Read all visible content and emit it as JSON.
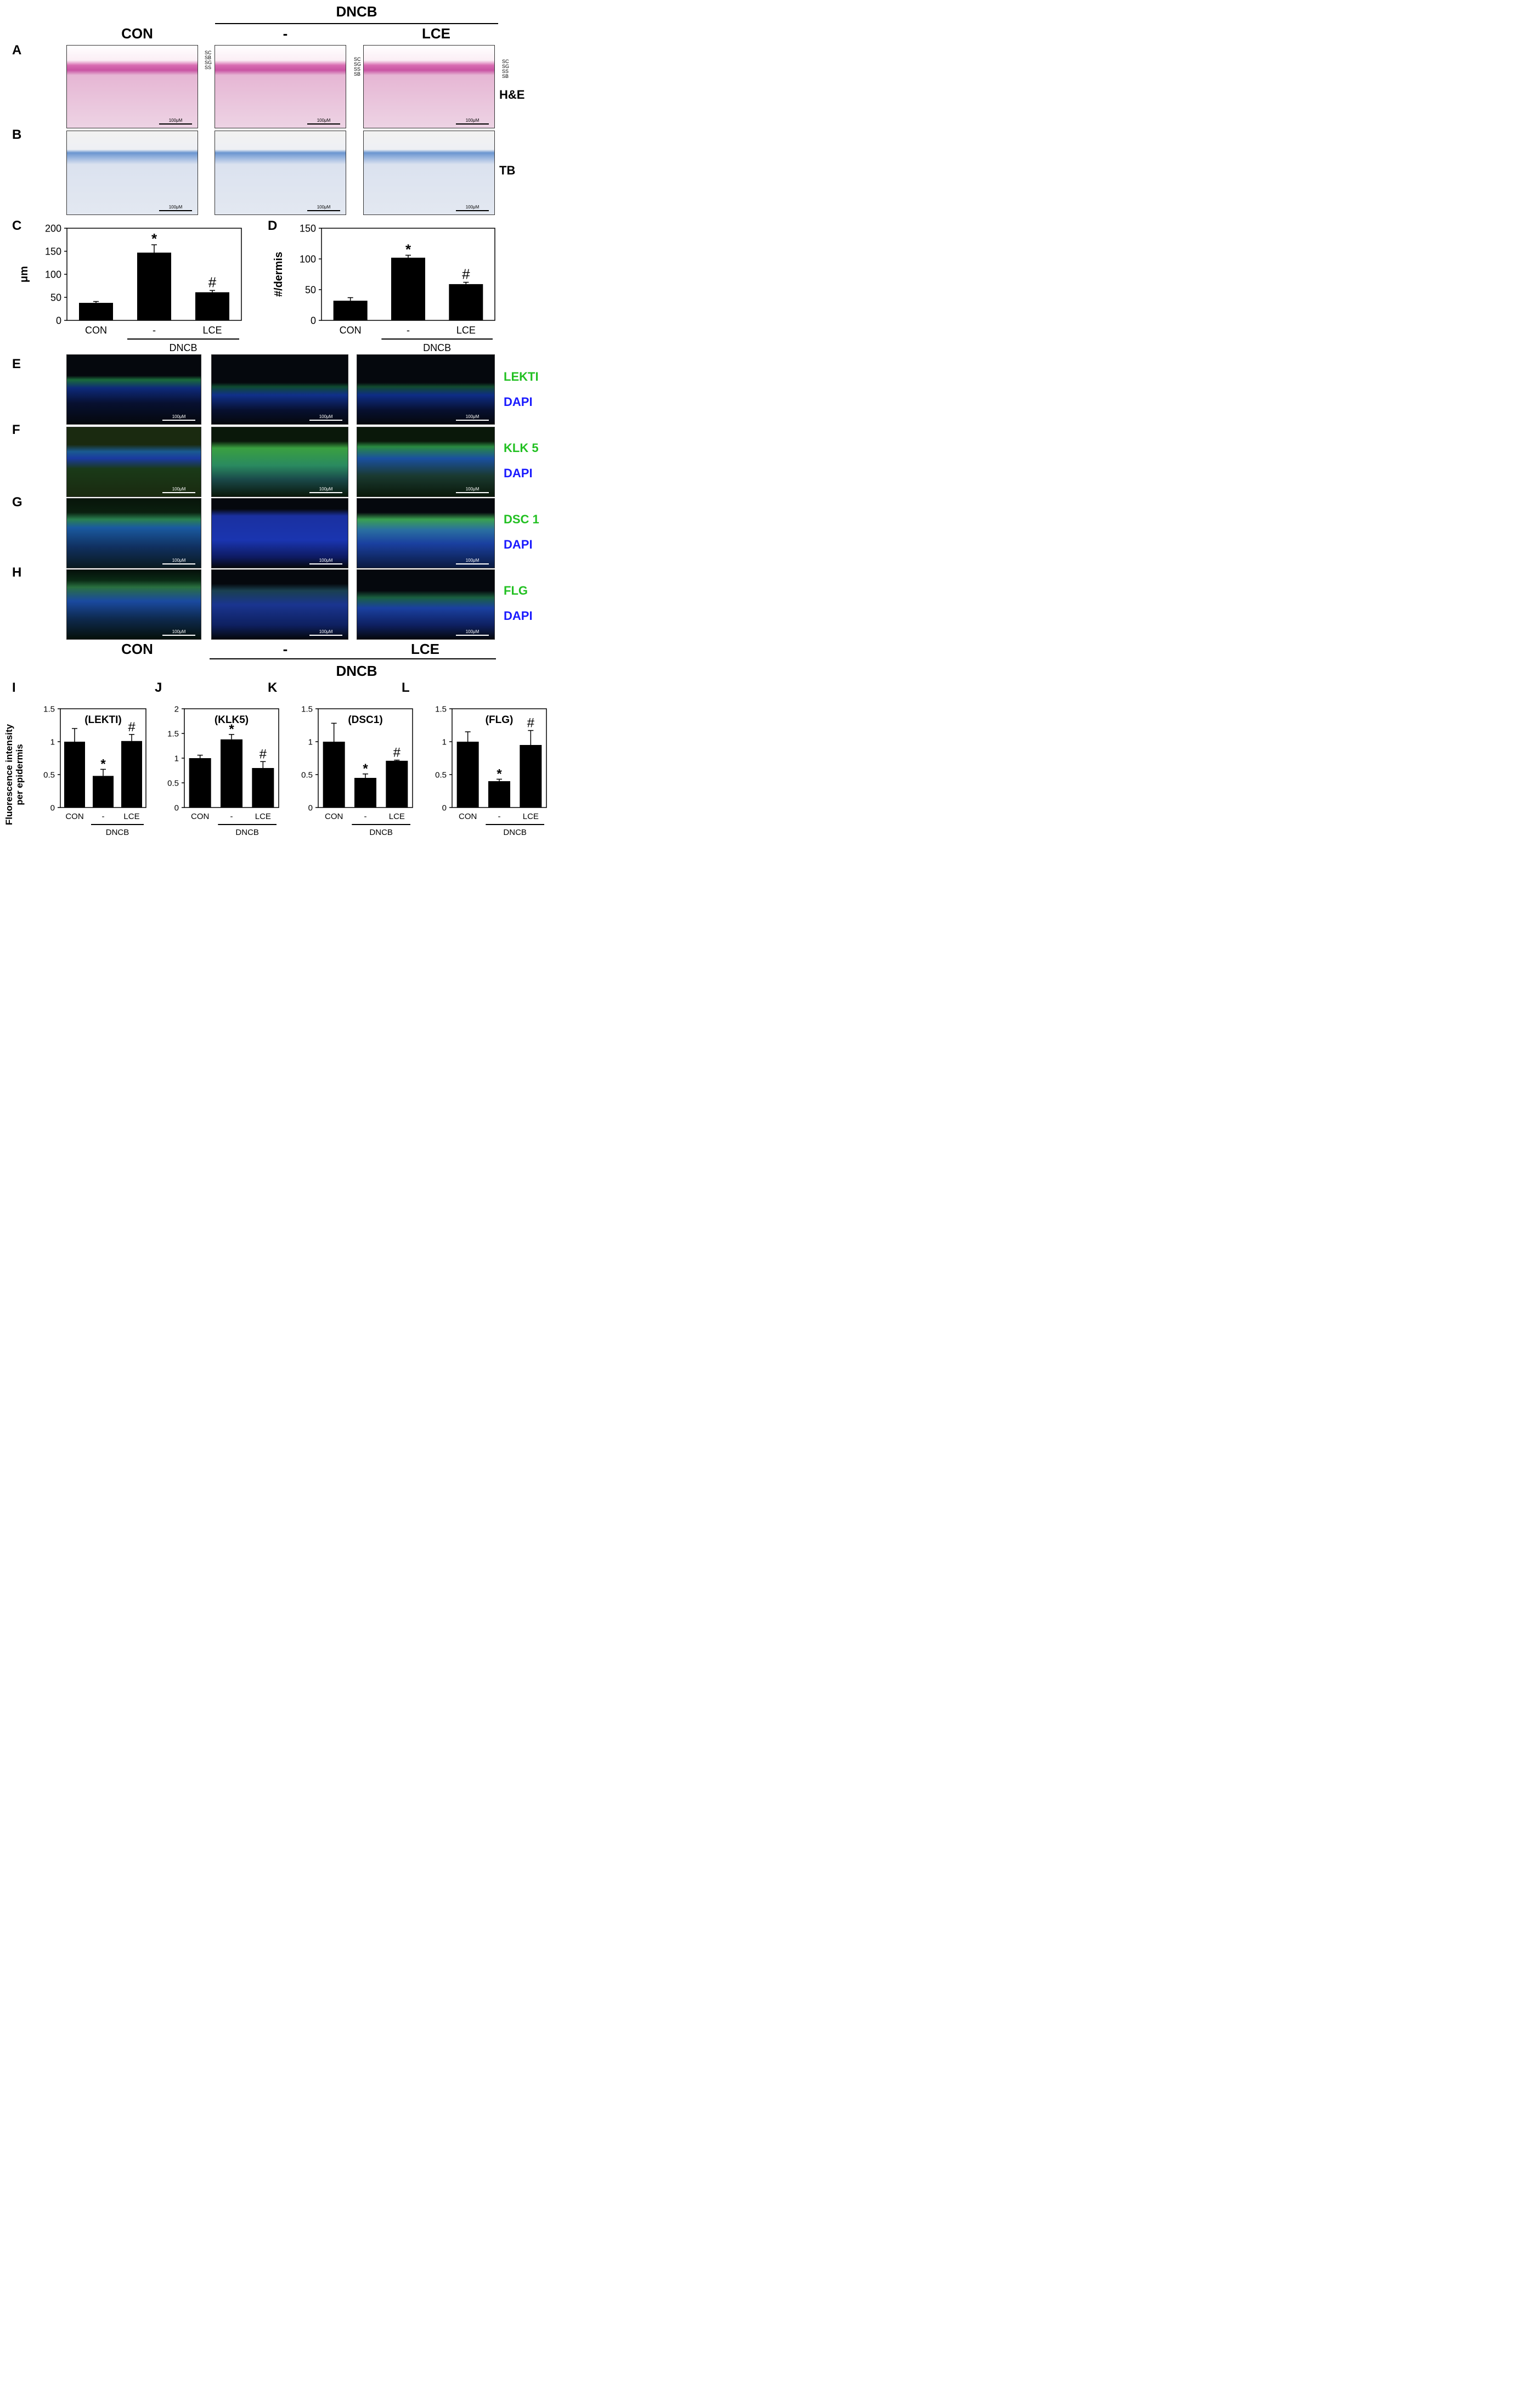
{
  "top": {
    "dncb": "DNCB",
    "con": "CON",
    "minus": "-",
    "lce": "LCE"
  },
  "panels": {
    "A": "A",
    "B": "B",
    "C": "C",
    "D": "D",
    "E": "E",
    "F": "F",
    "G": "G",
    "H": "H",
    "I": "I",
    "J": "J",
    "K": "K",
    "L": "L"
  },
  "layers": {
    "sc": "SC",
    "sg": "SG",
    "ss": "SS",
    "sb": "SB"
  },
  "stains": {
    "he": "H&E",
    "tb": "TB",
    "lekti": "LEKTI",
    "klk5": "KLK 5",
    "dsc1": "DSC 1",
    "flg": "FLG",
    "dapi": "DAPI"
  },
  "scalebar": "100μM",
  "colors": {
    "green": "#22c022",
    "blue": "#1a1aff",
    "he_pink": "#c954a3",
    "tb_blue": "#6b95d0"
  },
  "bottom_labels": {
    "con": "CON",
    "minus": "-",
    "lce": "LCE",
    "dncb": "DNCB"
  },
  "chart_data": [
    {
      "id": "C",
      "type": "bar",
      "categories": [
        "CON",
        "-",
        "LCE"
      ],
      "values": [
        38,
        147,
        61
      ],
      "errors": [
        3,
        17,
        4
      ],
      "marks": [
        "",
        "*",
        "#"
      ],
      "ylabel": "μm",
      "ylim": [
        0,
        200
      ],
      "yticks": [
        0,
        50,
        100,
        150,
        200
      ],
      "group_label": "DNCB",
      "title": ""
    },
    {
      "id": "D",
      "type": "bar",
      "categories": [
        "CON",
        "-",
        "LCE"
      ],
      "values": [
        32,
        102,
        59
      ],
      "errors": [
        5,
        4,
        3
      ],
      "marks": [
        "",
        "*",
        "#"
      ],
      "ylabel": "#/dermis",
      "ylim": [
        0,
        150
      ],
      "yticks": [
        0,
        50,
        100,
        150
      ],
      "group_label": "DNCB",
      "title": ""
    },
    {
      "id": "I",
      "type": "bar",
      "categories": [
        "CON",
        "-",
        "LCE"
      ],
      "values": [
        1.0,
        0.48,
        1.01
      ],
      "errors": [
        0.2,
        0.1,
        0.1
      ],
      "marks": [
        "",
        "*",
        "#"
      ],
      "ylabel": "Fluorescence intensity per epidermis",
      "ylim": [
        0,
        1.5
      ],
      "yticks": [
        "0",
        "0.5",
        "1",
        "1.5"
      ],
      "group_label": "DNCB",
      "title": "(LEKTI)"
    },
    {
      "id": "J",
      "type": "bar",
      "categories": [
        "CON",
        "-",
        "LCE"
      ],
      "values": [
        1.0,
        1.38,
        0.8
      ],
      "errors": [
        0.06,
        0.1,
        0.13
      ],
      "marks": [
        "",
        "*",
        "#"
      ],
      "ylabel": "",
      "ylim": [
        0,
        2
      ],
      "yticks": [
        "0",
        "0.5",
        "1",
        "1.5",
        "2"
      ],
      "group_label": "DNCB",
      "title": "(KLK5)"
    },
    {
      "id": "K",
      "type": "bar",
      "categories": [
        "CON",
        "-",
        "LCE"
      ],
      "values": [
        1.0,
        0.45,
        0.71
      ],
      "errors": [
        0.28,
        0.06,
        0.01
      ],
      "marks": [
        "",
        "*",
        "#"
      ],
      "ylabel": "",
      "ylim": [
        0,
        1.5
      ],
      "yticks": [
        "0",
        "0.5",
        "1",
        "1.5"
      ],
      "group_label": "DNCB",
      "title": "(DSC1)"
    },
    {
      "id": "L",
      "type": "bar",
      "categories": [
        "CON",
        "-",
        "LCE"
      ],
      "values": [
        1.0,
        0.4,
        0.95
      ],
      "errors": [
        0.15,
        0.03,
        0.22
      ],
      "marks": [
        "",
        "*",
        "#"
      ],
      "ylabel": "",
      "ylim": [
        0,
        1.5
      ],
      "yticks": [
        "0",
        "0.5",
        "1",
        "1.5"
      ],
      "group_label": "DNCB",
      "title": "(FLG)"
    }
  ]
}
